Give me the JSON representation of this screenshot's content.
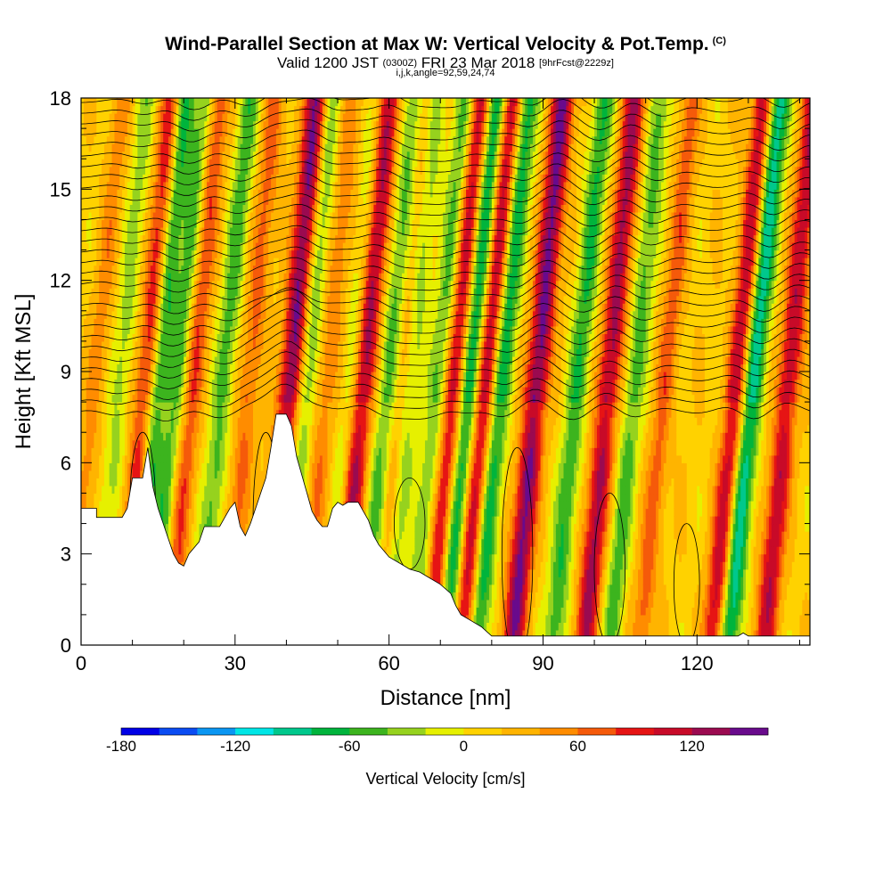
{
  "title": {
    "main": "Wind-Parallel Section at Max W: Vertical Velocity & Pot.Temp.",
    "copyright": "(C)",
    "valid_prefix": "Valid 1200 JST",
    "valid_utc": "(0300Z)",
    "valid_date": "FRI 23 Mar 2018",
    "forecast": "[9hrFcst@2229z]",
    "indices": "i,j,k,angle=92,59,24,74"
  },
  "chart_data": {
    "type": "heatmap",
    "xlabel": "Distance [nm]",
    "ylabel": "Height [Kft MSL]",
    "xlim": [
      0,
      142
    ],
    "ylim": [
      0,
      18
    ],
    "xticks": [
      0,
      30,
      60,
      90,
      120
    ],
    "yticks": [
      0,
      3,
      6,
      9,
      12,
      15,
      18
    ],
    "x_minor_step": 10,
    "y_minor_step": 1,
    "colorbar": {
      "label": "Vertical Velocity [cm/s]",
      "min": -180,
      "max": 150,
      "step": 20,
      "tick_values": [
        -180,
        -120,
        -60,
        0,
        60,
        120
      ],
      "colors": [
        "#0000e6",
        "#0a4bf2",
        "#0a96f2",
        "#00e6e6",
        "#00c88c",
        "#00b43c",
        "#3cb41e",
        "#96d21e",
        "#e6f000",
        "#ffd200",
        "#ffb400",
        "#ff8c00",
        "#f55a0a",
        "#e61414",
        "#c80a28",
        "#9b0a50",
        "#690a8c"
      ]
    },
    "updrafts": [
      {
        "x": 3,
        "w": 40
      },
      {
        "x": 13,
        "w": 110
      },
      {
        "x": 22,
        "w": 70
      },
      {
        "x": 33,
        "w": 60
      },
      {
        "x": 41,
        "w": 140
      },
      {
        "x": 48,
        "w": 50
      },
      {
        "x": 55,
        "w": 130
      },
      {
        "x": 63,
        "w": 70
      },
      {
        "x": 73,
        "w": 110
      },
      {
        "x": 79,
        "w": 120
      },
      {
        "x": 89,
        "w": 140
      },
      {
        "x": 103,
        "w": 120
      },
      {
        "x": 114,
        "w": 60
      },
      {
        "x": 128,
        "w": 110
      },
      {
        "x": 138,
        "w": 110
      }
    ],
    "downdrafts": [
      {
        "x": 8,
        "w": -40
      },
      {
        "x": 15,
        "w": -100
      },
      {
        "x": 19,
        "w": -60
      },
      {
        "x": 28,
        "w": -60
      },
      {
        "x": 44,
        "w": -60
      },
      {
        "x": 53,
        "w": -50
      },
      {
        "x": 60,
        "w": -60
      },
      {
        "x": 64,
        "w": -80
      },
      {
        "x": 70,
        "w": -60
      },
      {
        "x": 76,
        "w": -110
      },
      {
        "x": 82,
        "w": -90
      },
      {
        "x": 97,
        "w": -70
      },
      {
        "x": 108,
        "w": -60
      },
      {
        "x": 131,
        "w": -110
      }
    ],
    "terrain": [
      [
        0,
        4.5
      ],
      [
        3,
        4.5
      ],
      [
        3,
        4.2
      ],
      [
        8,
        4.2
      ],
      [
        9,
        4.5
      ],
      [
        10,
        5.5
      ],
      [
        12,
        5.5
      ],
      [
        13,
        6.5
      ],
      [
        14,
        5.2
      ],
      [
        15,
        4.5
      ],
      [
        17,
        3.5
      ],
      [
        18,
        3.0
      ],
      [
        19,
        2.7
      ],
      [
        20,
        2.6
      ],
      [
        21,
        3.0
      ],
      [
        23,
        3.4
      ],
      [
        24,
        3.9
      ],
      [
        27,
        3.9
      ],
      [
        28,
        4.2
      ],
      [
        29,
        4.5
      ],
      [
        30,
        4.7
      ],
      [
        31,
        3.9
      ],
      [
        32,
        3.6
      ],
      [
        33,
        4.0
      ],
      [
        34,
        4.5
      ],
      [
        35,
        5.0
      ],
      [
        36,
        5.5
      ],
      [
        37,
        6.5
      ],
      [
        38,
        7.6
      ],
      [
        40,
        7.6
      ],
      [
        41,
        7.2
      ],
      [
        42,
        6.2
      ],
      [
        43,
        5.6
      ],
      [
        44,
        5.0
      ],
      [
        45,
        4.4
      ],
      [
        46,
        4.1
      ],
      [
        47,
        3.9
      ],
      [
        48,
        3.9
      ],
      [
        49,
        4.5
      ],
      [
        50,
        4.7
      ],
      [
        51,
        4.6
      ],
      [
        52,
        4.7
      ],
      [
        54,
        4.7
      ],
      [
        55,
        4.4
      ],
      [
        56,
        4.1
      ],
      [
        57,
        3.6
      ],
      [
        58,
        3.3
      ],
      [
        59,
        3.1
      ],
      [
        60,
        2.9
      ],
      [
        62,
        2.7
      ],
      [
        64,
        2.5
      ],
      [
        66,
        2.4
      ],
      [
        68,
        2.2
      ],
      [
        70,
        2.0
      ],
      [
        72,
        1.7
      ],
      [
        73,
        1.3
      ],
      [
        74,
        1.0
      ],
      [
        76,
        0.8
      ],
      [
        78,
        0.6
      ],
      [
        80,
        0.3
      ],
      [
        128,
        0.3
      ],
      [
        129,
        0.4
      ],
      [
        130,
        0.3
      ],
      [
        142,
        0.3
      ]
    ],
    "isentrope_count": 30
  }
}
